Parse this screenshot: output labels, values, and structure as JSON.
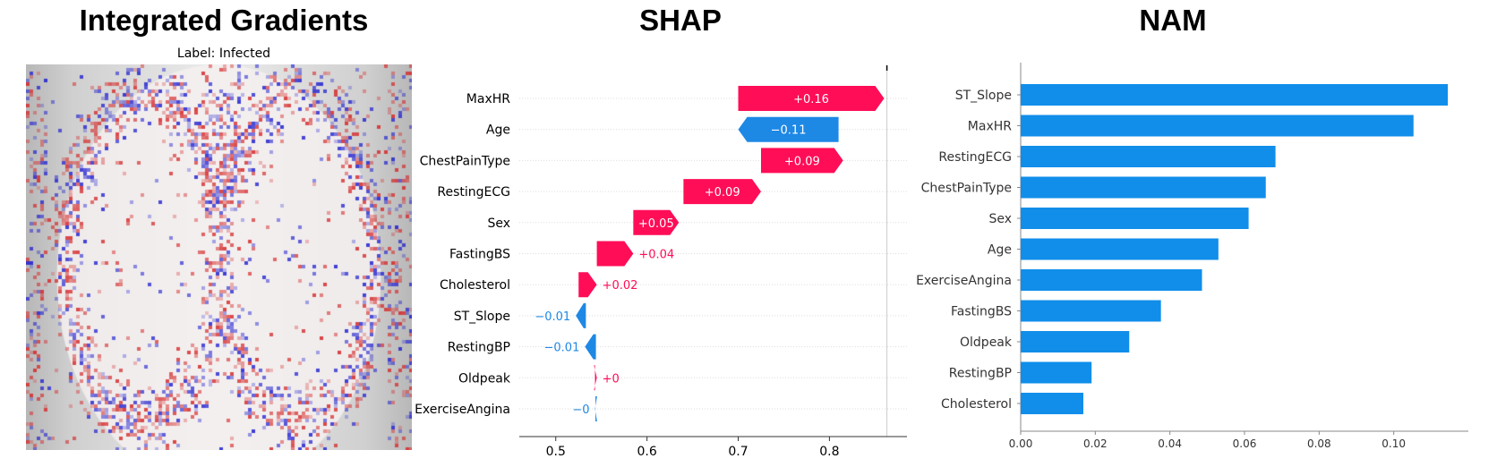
{
  "panels": {
    "ig_title": "Integrated Gradients",
    "shap_title": "SHAP",
    "nam_title": "NAM"
  },
  "integrated_gradients": {
    "subtitle": "Label: Infected",
    "colors": {
      "positive": "#d62728",
      "negative": "#1f1fd0",
      "background": "#c8c8c8"
    }
  },
  "chart_data": [
    {
      "type": "bar",
      "chart": "waterfall",
      "title": "SHAP",
      "categories": [
        "MaxHR",
        "Age",
        "ChestPainType",
        "RestingECG",
        "Sex",
        "FastingBS",
        "Cholesterol",
        "ST_Slope",
        "RestingBP",
        "Oldpeak",
        "ExerciseAngina"
      ],
      "starts": [
        0.7,
        0.81,
        0.725,
        0.64,
        0.585,
        0.545,
        0.525,
        0.533,
        0.544,
        0.543,
        0.5435
      ],
      "ends": [
        0.86,
        0.7,
        0.815,
        0.725,
        0.635,
        0.585,
        0.545,
        0.522,
        0.532,
        0.545,
        0.543
      ],
      "labels": [
        "+0.16",
        "−0.11",
        "+0.09",
        "+0.09",
        "+0.05",
        "+0.04",
        "+0.02",
        "−0.01",
        "−0.01",
        "+0",
        "−0"
      ],
      "xlim": [
        0.46,
        0.885
      ],
      "xticks": [
        0.5,
        0.6,
        0.7,
        0.8
      ],
      "xtick_labels": [
        "0.5",
        "0.6",
        "0.7",
        "0.8"
      ],
      "reference_value": 0.863,
      "colors": {
        "positive": "#ff0d57",
        "negative": "#1e88e5"
      }
    },
    {
      "type": "bar",
      "orientation": "horizontal",
      "title": "NAM",
      "categories": [
        "ST_Slope",
        "MaxHR",
        "RestingECG",
        "ChestPainType",
        "Sex",
        "Age",
        "ExerciseAngina",
        "FastingBS",
        "Oldpeak",
        "RestingBP",
        "Cholesterol"
      ],
      "values": [
        0.1145,
        0.1053,
        0.0683,
        0.0657,
        0.0611,
        0.053,
        0.0486,
        0.0376,
        0.0291,
        0.019,
        0.0168
      ],
      "xlim": [
        0,
        0.12
      ],
      "xticks": [
        0,
        0.02,
        0.04,
        0.06,
        0.08,
        0.1
      ],
      "xtick_labels": [
        "0.00",
        "0.02",
        "0.04",
        "0.06",
        "0.08",
        "0.10"
      ],
      "colors": {
        "bar": "#118eea"
      }
    }
  ]
}
